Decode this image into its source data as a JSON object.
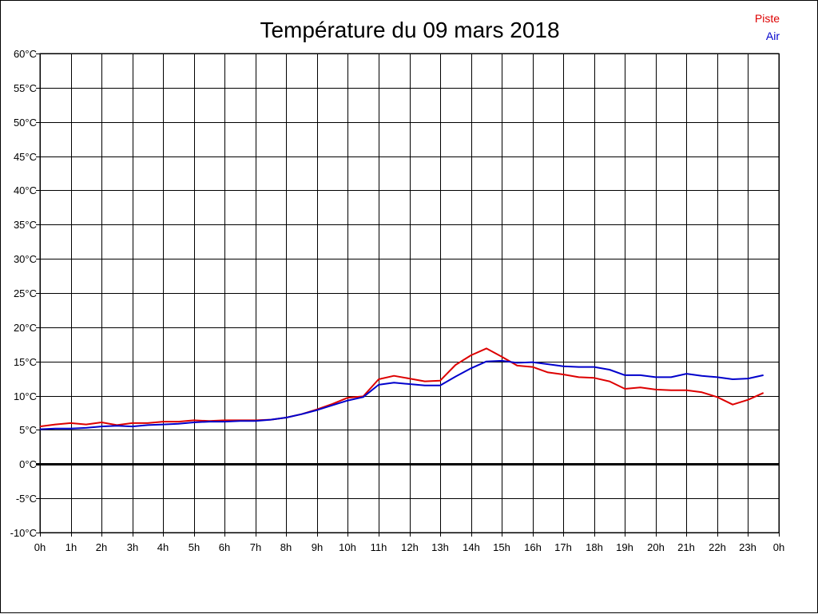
{
  "chart_data": {
    "type": "line",
    "title": "Température du 09 mars 2018",
    "xlabel": "",
    "ylabel": "",
    "ylim": [
      -10,
      60
    ],
    "xlim": [
      0,
      24
    ],
    "yticks": [
      60,
      55,
      50,
      45,
      40,
      35,
      30,
      25,
      20,
      15,
      10,
      5,
      0,
      -5,
      -10
    ],
    "ytick_labels": [
      "60°C",
      "55°C",
      "50°C",
      "45°C",
      "40°C",
      "35°C",
      "30°C",
      "25°C",
      "20°C",
      "15°C",
      "10°C",
      "5°C",
      "0°C",
      "-5°C",
      "-10°C"
    ],
    "xtick_labels": [
      "0h",
      "1h",
      "2h",
      "3h",
      "4h",
      "5h",
      "6h",
      "7h",
      "8h",
      "9h",
      "10h",
      "11h",
      "12h",
      "13h",
      "14h",
      "15h",
      "16h",
      "17h",
      "18h",
      "19h",
      "20h",
      "21h",
      "22h",
      "23h",
      "0h"
    ],
    "grid": true,
    "zero_line": true,
    "legend": "top-right",
    "series": [
      {
        "name": "Piste",
        "color": "#dd0000",
        "x": [
          0,
          0.5,
          1,
          1.5,
          2,
          2.5,
          3,
          3.5,
          4,
          4.5,
          5,
          5.5,
          6,
          6.5,
          7,
          7.5,
          8,
          8.5,
          9,
          9.5,
          10,
          10.5,
          11,
          11.5,
          12,
          12.5,
          13,
          13.5,
          14,
          14.5,
          15,
          15.5,
          16,
          16.5,
          17,
          17.5,
          18,
          18.5,
          19,
          19.5,
          20,
          20.5,
          21,
          21.5,
          22,
          22.5,
          23,
          23.5
        ],
        "values": [
          5.5,
          5.8,
          6.0,
          5.8,
          6.1,
          5.7,
          6.0,
          6.0,
          6.2,
          6.2,
          6.4,
          6.3,
          6.4,
          6.4,
          6.4,
          6.5,
          6.8,
          7.3,
          8.0,
          8.8,
          9.7,
          9.9,
          12.4,
          12.9,
          12.5,
          12.1,
          12.2,
          14.5,
          15.9,
          16.9,
          15.7,
          14.4,
          14.2,
          13.4,
          13.1,
          12.7,
          12.6,
          12.1,
          11.0,
          11.2,
          10.9,
          10.8,
          10.8,
          10.5,
          9.8,
          8.7,
          9.4,
          10.4
        ]
      },
      {
        "name": "Air",
        "color": "#0000cc",
        "x": [
          0,
          0.5,
          1,
          1.5,
          2,
          2.5,
          3,
          3.5,
          4,
          4.5,
          5,
          5.5,
          6,
          6.5,
          7,
          7.5,
          8,
          8.5,
          9,
          9.5,
          10,
          10.5,
          11,
          11.5,
          12,
          12.5,
          13,
          13.5,
          14,
          14.5,
          15,
          15.5,
          16,
          16.5,
          17,
          17.5,
          18,
          18.5,
          19,
          19.5,
          20,
          20.5,
          21,
          21.5,
          22,
          22.5,
          23,
          23.5
        ],
        "values": [
          5.1,
          5.2,
          5.2,
          5.3,
          5.5,
          5.6,
          5.5,
          5.7,
          5.8,
          5.9,
          6.1,
          6.2,
          6.2,
          6.3,
          6.3,
          6.5,
          6.8,
          7.3,
          7.9,
          8.6,
          9.3,
          9.8,
          11.6,
          11.9,
          11.7,
          11.5,
          11.5,
          12.8,
          14.0,
          15.0,
          15.1,
          14.8,
          14.9,
          14.6,
          14.3,
          14.2,
          14.2,
          13.8,
          13.0,
          13.0,
          12.7,
          12.7,
          13.2,
          12.9,
          12.7,
          12.4,
          12.5,
          13.0
        ]
      }
    ]
  }
}
